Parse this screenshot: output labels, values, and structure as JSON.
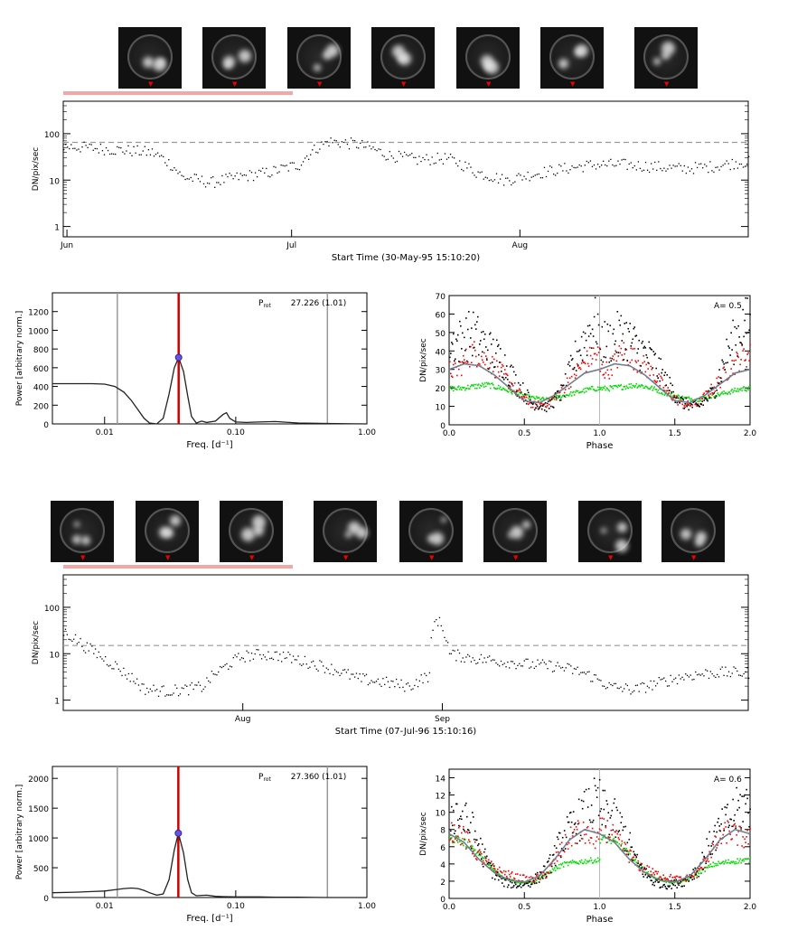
{
  "chart_data": [
    {
      "type": "scatter",
      "panel": "light-curve-1",
      "ylabel": "DN/pix/sec",
      "xlabel": "Start Time (30-May-95 15:10:20)",
      "y_scale": "log",
      "ylim": [
        0.6,
        500
      ],
      "y_ticks": [
        "1",
        "10",
        "100"
      ],
      "x_ticks": [
        "Jun",
        "Jul",
        "Aug"
      ],
      "threshold_line": 65,
      "series": [
        {
          "x_day": [
            0,
            4,
            8,
            12,
            16,
            20,
            24,
            28,
            32,
            36,
            40,
            44,
            48,
            52,
            56,
            60,
            64,
            68,
            72,
            76,
            80,
            84,
            88,
            92
          ],
          "values": [
            55,
            50,
            45,
            40,
            12,
            9,
            12,
            15,
            22,
            70,
            60,
            35,
            28,
            30,
            15,
            10,
            14,
            18,
            22,
            22,
            20,
            18,
            20,
            25
          ]
        }
      ],
      "thumbnails": 7
    },
    {
      "type": "line",
      "panel": "periodogram-1",
      "ylabel": "Power [arbitrary norm.]",
      "xlabel": "Freq. [d⁻¹]",
      "x_scale": "log",
      "xlim": [
        0.004,
        1.0
      ],
      "ylim": [
        0,
        1400
      ],
      "x_ticks": [
        "0.01",
        "0.10",
        "1.00"
      ],
      "y_ticks": [
        "0",
        "200",
        "400",
        "600",
        "800",
        "1000",
        "1200"
      ],
      "annotation_label": "P",
      "annotation_sub": "rot",
      "annotation_value": "27.226 (1.01)",
      "peak": {
        "freq": 0.0367,
        "power": 710
      },
      "vlines": [
        0.0125,
        0.0367,
        0.5
      ],
      "series": [
        {
          "freq": [
            0.004,
            0.006,
            0.008,
            0.01,
            0.012,
            0.014,
            0.016,
            0.018,
            0.02,
            0.022,
            0.025,
            0.028,
            0.031,
            0.034,
            0.0367,
            0.04,
            0.043,
            0.046,
            0.05,
            0.055,
            0.06,
            0.07,
            0.08,
            0.085,
            0.09,
            0.1,
            0.12,
            0.15,
            0.2,
            0.3,
            0.5,
            1.0
          ],
          "power": [
            430,
            430,
            430,
            425,
            400,
            340,
            250,
            150,
            60,
            10,
            0,
            60,
            320,
            600,
            710,
            560,
            300,
            80,
            10,
            30,
            15,
            30,
            100,
            120,
            60,
            20,
            15,
            20,
            25,
            10,
            5,
            0
          ]
        }
      ]
    },
    {
      "type": "scatter",
      "panel": "phase-1",
      "ylabel": "DN/pix/sec",
      "xlabel": "Phase",
      "xlim": [
        0.0,
        2.0
      ],
      "ylim": [
        0,
        70
      ],
      "x_ticks": [
        "0.0",
        "0.5",
        "1.0",
        "1.5",
        "2.0"
      ],
      "y_ticks": [
        "0",
        "10",
        "20",
        "30",
        "40",
        "50",
        "60",
        "70"
      ],
      "annotation": "A= 0.5",
      "model": {
        "phase": [
          0.0,
          0.1,
          0.2,
          0.3,
          0.4,
          0.5,
          0.6,
          0.7,
          0.8,
          0.9,
          1.0
        ],
        "values": [
          30,
          33,
          32,
          27,
          20,
          13,
          12,
          16,
          22,
          28,
          30
        ]
      },
      "series": [
        {
          "name": "",
          "color": "#000000",
          "phase": [
            0.05,
            0.15,
            0.25,
            0.35,
            0.45,
            0.55,
            0.65,
            0.75,
            0.85,
            0.95
          ],
          "values": [
            45,
            50,
            42,
            35,
            22,
            12,
            10,
            18,
            40,
            55
          ]
        },
        {
          "name": "",
          "color": "#ff0000",
          "phase": [
            0.05,
            0.15,
            0.25,
            0.35,
            0.45,
            0.55,
            0.65,
            0.75,
            0.85,
            0.95
          ],
          "values": [
            30,
            40,
            35,
            28,
            18,
            11,
            12,
            20,
            30,
            38
          ]
        },
        {
          "name": "",
          "color": "#00dd00",
          "phase": [
            0.05,
            0.15,
            0.25,
            0.35,
            0.45,
            0.55,
            0.65,
            0.75,
            0.85,
            0.95
          ],
          "values": [
            20,
            21,
            22,
            20,
            17,
            15,
            14,
            16,
            18,
            20
          ]
        }
      ]
    },
    {
      "type": "scatter",
      "panel": "light-curve-2",
      "ylabel": "DN/pix/sec",
      "xlabel": "Start Time (07-Jul-96 15:10:16)",
      "y_scale": "log",
      "ylim": [
        0.6,
        500
      ],
      "y_ticks": [
        "1",
        "10",
        "100"
      ],
      "x_ticks": [
        "Aug",
        "Sep"
      ],
      "threshold_line": 15,
      "series": [
        {
          "x_day": [
            0,
            3,
            6,
            9,
            12,
            15,
            18,
            21,
            24,
            27,
            30,
            33,
            36,
            40,
            44,
            48,
            52,
            55,
            56,
            58,
            62,
            66,
            70,
            74,
            78,
            82,
            86,
            90,
            94,
            98,
            102
          ],
          "values": [
            30,
            15,
            8,
            4,
            1.8,
            1.6,
            1.7,
            2,
            5,
            9,
            10,
            9,
            7,
            5,
            3,
            2.5,
            2,
            3.5,
            60,
            10,
            8,
            7,
            6,
            5.5,
            4,
            2,
            1.7,
            2.5,
            3.5,
            4,
            4
          ]
        }
      ],
      "thumbnails": 8
    },
    {
      "type": "line",
      "panel": "periodogram-2",
      "ylabel": "Power [arbitrary norm.]",
      "xlabel": "Freq. [d⁻¹]",
      "x_scale": "log",
      "xlim": [
        0.004,
        1.0
      ],
      "ylim": [
        0,
        2200
      ],
      "x_ticks": [
        "0.01",
        "0.10",
        "1.00"
      ],
      "y_ticks": [
        "0",
        "500",
        "1000",
        "1500",
        "2000"
      ],
      "annotation_label": "P",
      "annotation_sub": "rot",
      "annotation_value": "27.360 (1.01)",
      "peak": {
        "freq": 0.0365,
        "power": 1080
      },
      "vlines": [
        0.0125,
        0.0365,
        0.5
      ],
      "series": [
        {
          "freq": [
            0.004,
            0.006,
            0.008,
            0.01,
            0.012,
            0.014,
            0.016,
            0.018,
            0.02,
            0.022,
            0.025,
            0.028,
            0.031,
            0.034,
            0.0365,
            0.04,
            0.043,
            0.046,
            0.05,
            0.06,
            0.07,
            0.08,
            0.1,
            0.15,
            0.2,
            0.3,
            0.5,
            1.0
          ],
          "power": [
            80,
            90,
            100,
            110,
            130,
            150,
            160,
            150,
            120,
            80,
            40,
            60,
            300,
            800,
            1080,
            750,
            300,
            80,
            30,
            40,
            20,
            15,
            10,
            10,
            5,
            5,
            0,
            0
          ]
        }
      ]
    },
    {
      "type": "scatter",
      "panel": "phase-2",
      "ylabel": "DN/pix/sec",
      "xlabel": "Phase",
      "xlim": [
        0.0,
        2.0
      ],
      "ylim": [
        0,
        15
      ],
      "x_ticks": [
        "0.0",
        "0.5",
        "1.0",
        "1.5",
        "2.0"
      ],
      "y_ticks": [
        "0",
        "2",
        "4",
        "6",
        "8",
        "10",
        "12",
        "14"
      ],
      "annotation": "A= 0.6",
      "model": {
        "phase": [
          0.0,
          0.1,
          0.2,
          0.3,
          0.4,
          0.5,
          0.6,
          0.7,
          0.8,
          0.9,
          1.0
        ],
        "values": [
          7.5,
          6.5,
          4.5,
          3,
          2.1,
          1.9,
          2.6,
          4.5,
          6.8,
          8,
          7.5
        ]
      },
      "series": [
        {
          "name": "",
          "color": "#000000",
          "phase": [
            0.05,
            0.15,
            0.25,
            0.35,
            0.45,
            0.55,
            0.65,
            0.75,
            0.85,
            0.95
          ],
          "values": [
            10,
            8,
            4,
            2,
            1.6,
            2,
            3.5,
            7,
            9,
            11
          ]
        },
        {
          "name": "",
          "color": "#ff0000",
          "phase": [
            0.05,
            0.15,
            0.25,
            0.35,
            0.45,
            0.55,
            0.65,
            0.75,
            0.85,
            0.95
          ],
          "values": [
            8,
            6,
            4,
            3,
            2.5,
            2.2,
            3,
            6,
            8,
            7
          ]
        },
        {
          "name": "",
          "color": "#00dd00",
          "phase": [
            0.05,
            0.15,
            0.25,
            0.35,
            0.45,
            0.55,
            0.65,
            0.75,
            0.85,
            0.95
          ],
          "values": [
            7,
            6,
            4,
            2.5,
            2,
            2,
            3,
            4,
            4.3,
            4.5
          ]
        }
      ]
    }
  ]
}
